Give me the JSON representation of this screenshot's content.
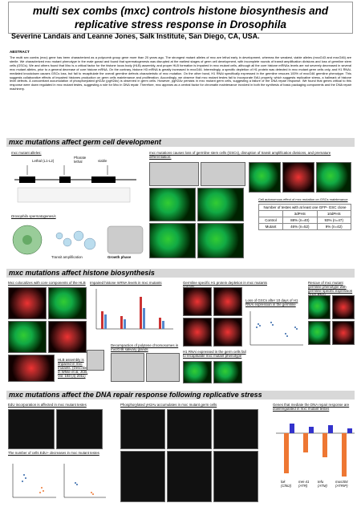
{
  "header": {
    "title": "multi sex combs (mxc) controls histone biosynthesis and replicative stress response in Drosophila",
    "authors": "Severine Landais and Leanne Jones, Salk Institute, San Diego, CA, USA."
  },
  "abstract": {
    "heading": "ABSTRACT",
    "text": "The multi sex combs (mxc) gene has been characterized as a polycomb group gene more than 20 years ago. The strongest mutant alleles of mxc are lethal early in development, whereas the weakest, viable alleles (mxcG43 and mxcG46) are sterile. We characterized mxc mutant phenotype in the male gonad and found that spermatogenesis was disrupted at the earliest stages of germ cell development, with incomplete rounds of transit amplification divisions and loss of germline stem cells (GSCs). We and others found that Mxc is a critical factor for the histone locus body (HLB) assembly, and proper HLB formation is impaired in mxc mutant cells, although all the core histone mRNAs levels are not severely decreased in several mxc mutant alleles, prior to a general decrease of core histone mRNA. On the contrary, histone H3 mRNA is greatly increased in mxcG46. Interestingly, a specific depletion of H1 protein was detected in mxc mutant germ cells only, and H1 RNAi-mediated knockdown causes GSCs loss, but fail to recapitulate the overall germline defects characteristic of mxc mutation. On the other hand, H1 RNAi specifically expressed in the germline rescues 100% of mxcG46 germline phenotype. This suggests collaborative effects of impaired histones production on germ cells maintenance and proliferation. Accordingly, we observe that mxc mutant testes fail to incorporate EdU properly, which suggests replicative stress, a hallmark of histone level defects. A concomitant accumulation of phosphorylated gH2Av (pgH2Av) is observed in germ cells. However, pgH2Av persists in mxc mutant germ cells, suggesting a failure of the DNA repair response. We found that genes critical to this response were down regulated in mxc mutant testes, suggesting a role for Mxc in DNA repair. Therefore, mxc appears as a central factor for chromatin maintenance involved in both the synthesis of basic packaging components and the DNA repair machinery."
  },
  "sections": [
    {
      "title": "mxc mutations affect germ cell development",
      "captions": [
        "mxc mutant alleles:",
        "Lethal (L1-L2)",
        "Pharate lethal",
        "viable",
        "Drosophila spermatogenesis",
        "Transit amplification",
        "Growth phase",
        "mxc mutations causes loss of germline stem cells (GSCs), disruption of transit amplification divisions, and premature differentiation:"
      ],
      "table": {
        "title": "Cell autonomous effect of mxc mutation on GSCs maintenance",
        "caption": "Number of testes with at least one GFP- GSC clone",
        "header": [
          "",
          "3dPHS",
          "10dPHS"
        ],
        "rows": [
          [
            "Control",
            "88% (n=40)",
            "93% (n=47)"
          ],
          [
            "Mutant",
            "46% (n=52)",
            "9% (n=42)"
          ]
        ]
      }
    },
    {
      "title": "mxc mutations affect histone biosynthesis",
      "captions": [
        "Mxc colocalizes with core components of the HLB",
        "Impaired histone mRNA levels in mxc mutants",
        "Germline specific H1 protein depletion in mxc mutants gonads",
        "Rescue of mxc mutant germline phenotype with germline specific expression of H1 RNAi",
        "HLB assembly is impaired in mxc mutants. (Described in White et al, JCB, Vol. 193 (4) 2011)",
        "Decompaction of polytene chromosomes in mxcG46 salivary glands",
        "Loss of GSCs after 10 days of H1 RNAi expression in the germline",
        "H1 RNAi expressed in the germ cells fail to recapitulate mxc mutant phenotype"
      ]
    },
    {
      "title": "mxc mutations affect the DNA repair response following replicative stress",
      "captions": [
        "EdU incorporation is affected in mxc mutant testes",
        "Phosphorylated γH2Av accumulates in mxc mutant germ cells",
        "Genes that mediate the DNA repair response are downregulated in mxc mutant testes",
        "The number of cells EdU+ decreases in mxc mutant testes",
        "lok (Chk2)",
        "mei-41 (ATR)",
        "tefu (ATM)",
        "mus304 (ATRIP)"
      ]
    }
  ]
}
